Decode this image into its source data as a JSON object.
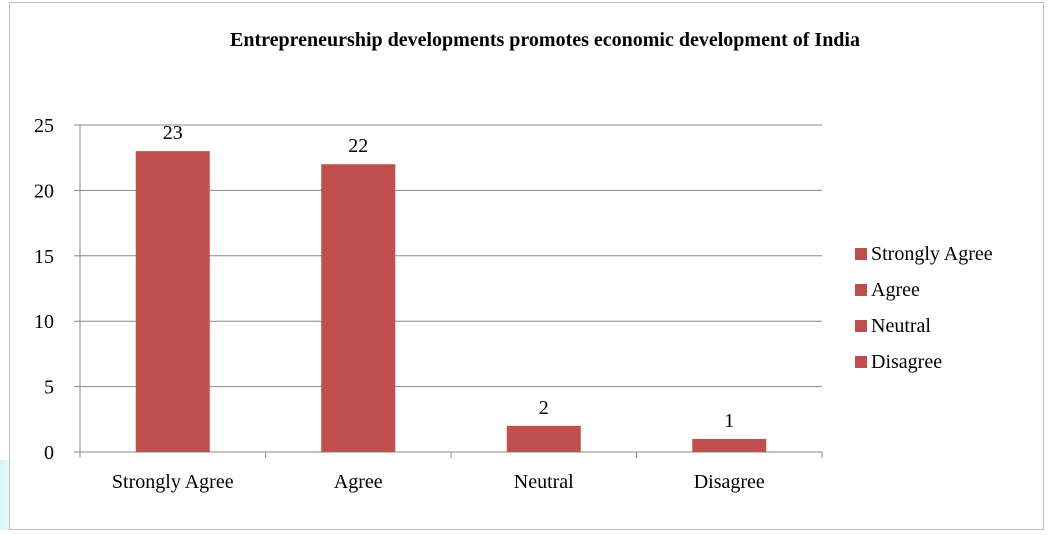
{
  "chart_data": {
    "type": "bar",
    "title": "Entrepreneurship developments promotes economic development of India",
    "categories": [
      "Strongly Agree",
      "Agree",
      "Neutral",
      "Disagree"
    ],
    "series": [
      {
        "values": [
          23,
          22,
          2,
          1
        ]
      }
    ],
    "data_labels": [
      "23",
      "22",
      "2",
      "1"
    ],
    "y_ticks": [
      0,
      5,
      10,
      15,
      20,
      25
    ],
    "ylim": [
      0,
      25
    ],
    "grid": true,
    "legend": {
      "placement": "right",
      "entries": [
        "Strongly Agree",
        "Agree",
        "Neutral",
        "Disagree"
      ]
    },
    "colors": {
      "bar": "#c0504d",
      "grid": "#888888",
      "axis": "#888888"
    }
  }
}
